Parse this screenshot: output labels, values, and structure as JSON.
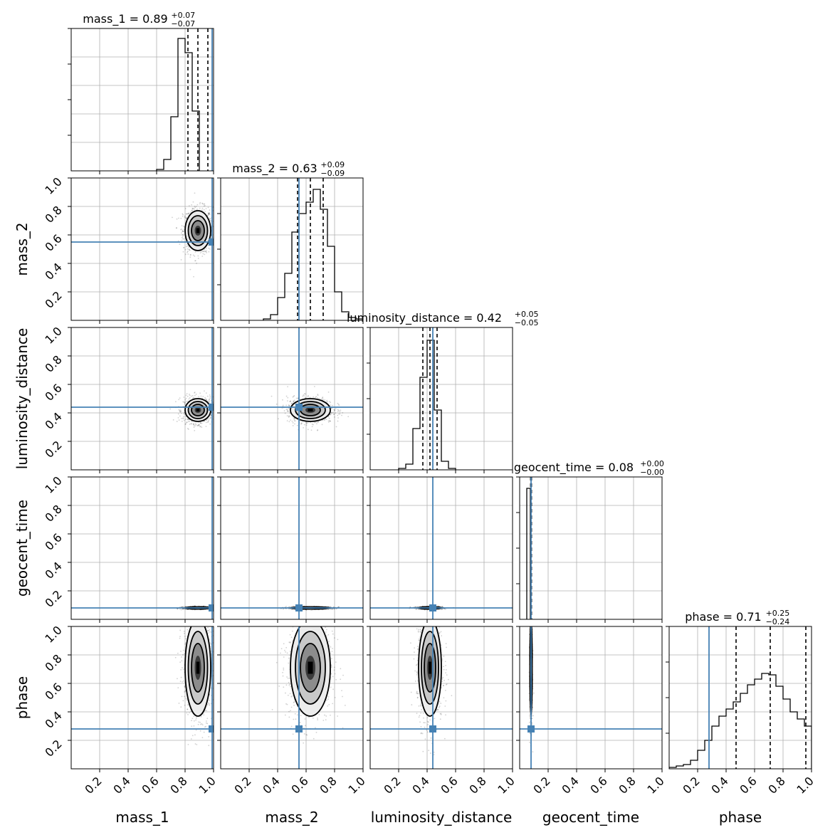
{
  "chart_data": {
    "type": "corner",
    "parameters": [
      "mass_1",
      "mass_2",
      "luminosity_distance",
      "geocent_time",
      "phase"
    ],
    "axis_range": [
      0,
      1
    ],
    "x_tick_labels": [
      "0.2",
      "0.4",
      "0.6",
      "0.8",
      "1.0"
    ],
    "y_tick_labels": [
      "1.0",
      "0.8",
      "0.6",
      "0.4",
      "0.2"
    ],
    "titles": [
      {
        "param": "mass_1",
        "text": "mass_1 = 0.89",
        "median": 0.89,
        "upper": "+0.07",
        "lower": "−0.07",
        "q_low": 0.82,
        "q_high": 0.96
      },
      {
        "param": "mass_2",
        "text": "mass_2 = 0.63",
        "median": 0.63,
        "upper": "+0.09",
        "lower": "−0.09",
        "q_low": 0.54,
        "q_high": 0.72
      },
      {
        "param": "luminosity_distance",
        "text": "luminosity_distance = 0.42",
        "median": 0.42,
        "upper": "+0.05",
        "lower": "−0.05",
        "q_low": 0.37,
        "q_high": 0.47
      },
      {
        "param": "geocent_time",
        "text": "geocent_time = 0.08",
        "median": 0.08,
        "upper": "+0.00",
        "lower": "−0.00",
        "q_low": 0.077,
        "q_high": 0.083
      },
      {
        "param": "phase",
        "text": "phase = 0.71",
        "median": 0.71,
        "upper": "+0.25",
        "lower": "−0.24",
        "q_low": 0.47,
        "q_high": 0.96
      }
    ],
    "truths": {
      "mass_1": 0.99,
      "mass_2": 0.55,
      "luminosity_distance": 0.44,
      "geocent_time": 0.08,
      "phase": 0.28
    },
    "posterior_std": {
      "mass_1": 0.045,
      "mass_2": 0.07,
      "luminosity_distance": 0.04,
      "geocent_time": 0.004,
      "phase": 0.17
    },
    "histograms": {
      "mass_1": {
        "bin_width": 0.05,
        "start": 0.6,
        "counts": [
          0.01,
          0.08,
          0.38,
          0.93,
          0.83,
          0.42
        ]
      },
      "mass_2": {
        "bin_width": 0.05,
        "start": 0.3,
        "counts": [
          0.01,
          0.04,
          0.16,
          0.33,
          0.62,
          0.75,
          0.83,
          0.92,
          0.78,
          0.52,
          0.2,
          0.06,
          0.02,
          0.01
        ]
      },
      "luminosity_distance": {
        "bin_width": 0.05,
        "start": 0.2,
        "counts": [
          0.01,
          0.04,
          0.29,
          0.65,
          0.91,
          0.42,
          0.06,
          0.01
        ]
      },
      "geocent_time": {
        "bin_width": 0.025,
        "start": 0.05,
        "counts": [
          0.92
        ]
      },
      "phase": {
        "bin_width": 0.05,
        "start": 0.0,
        "counts": [
          0.01,
          0.02,
          0.03,
          0.06,
          0.13,
          0.2,
          0.3,
          0.37,
          0.42,
          0.47,
          0.53,
          0.59,
          0.63,
          0.67,
          0.66,
          0.58,
          0.49,
          0.4,
          0.35,
          0.3
        ]
      }
    },
    "truth_color": "#4682b4",
    "line_color": "#000000",
    "grid_color": "#b0b0b0"
  }
}
